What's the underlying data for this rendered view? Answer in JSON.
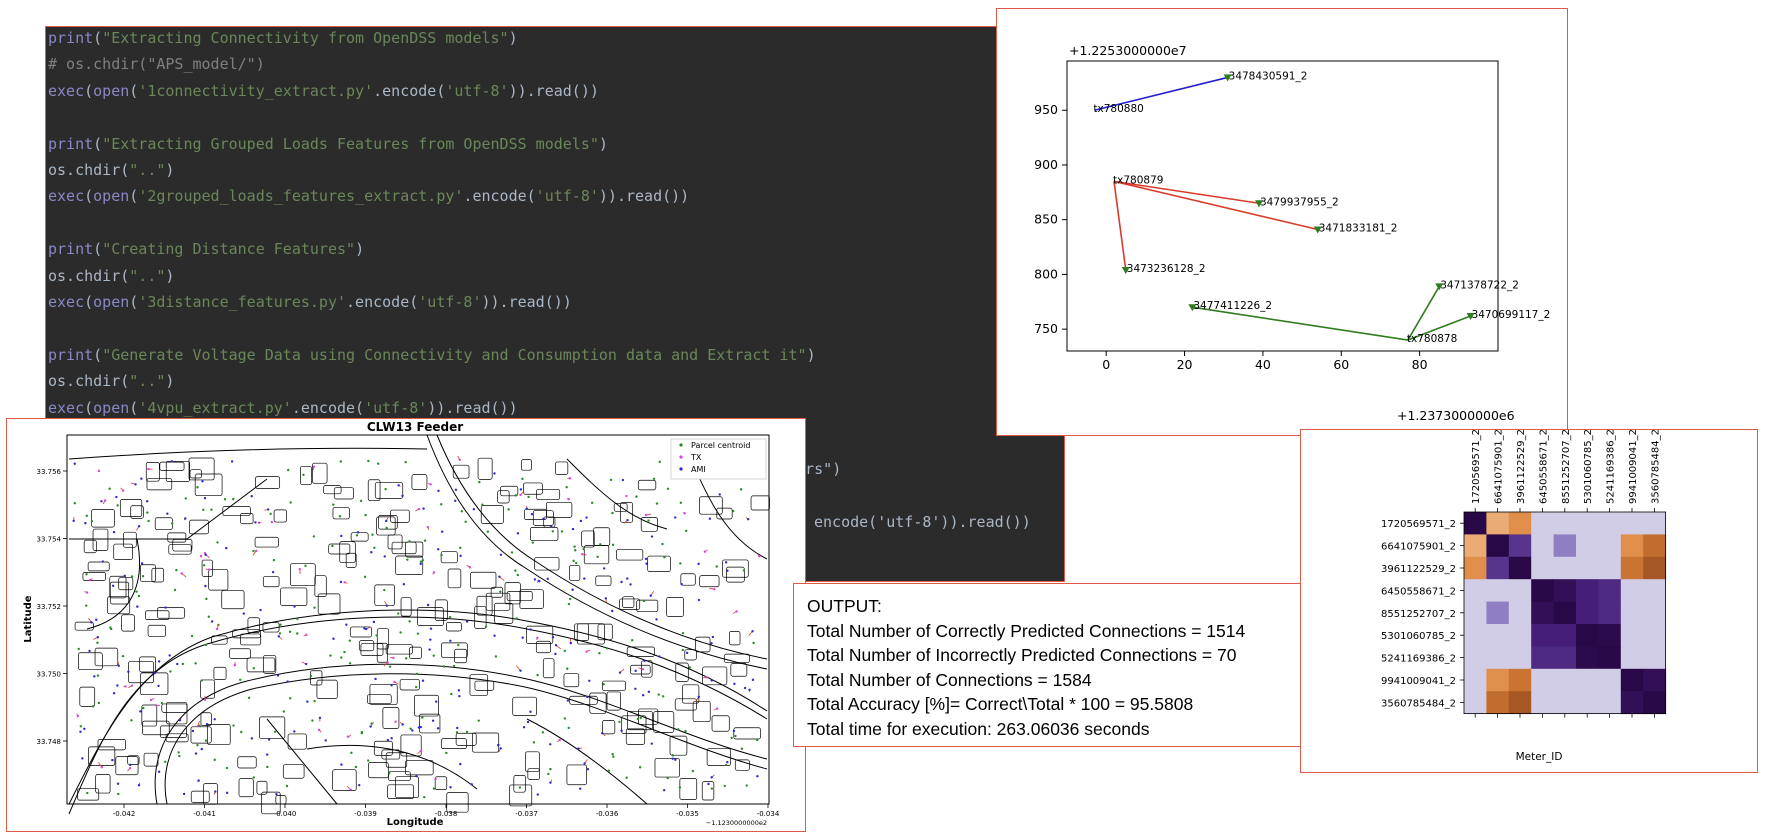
{
  "code": [
    {
      "segs": [
        [
          "kw",
          "print"
        ],
        [
          "p",
          "("
        ],
        [
          "str",
          "\"Extracting Connectivity from OpenDSS models\""
        ],
        [
          "p",
          ")"
        ]
      ]
    },
    {
      "segs": [
        [
          "cm",
          "# os.chdir(\"APS_model/\")"
        ]
      ]
    },
    {
      "segs": [
        [
          "kw",
          "exec"
        ],
        [
          "p",
          "("
        ],
        [
          "kw",
          "open"
        ],
        [
          "p",
          "("
        ],
        [
          "str",
          "'1connectivity_extract.py'"
        ],
        [
          "p",
          ".encode("
        ],
        [
          "str",
          "'utf-8'"
        ],
        [
          "p",
          ")).read())"
        ]
      ]
    },
    {
      "segs": []
    },
    {
      "segs": [
        [
          "kw",
          "print"
        ],
        [
          "p",
          "("
        ],
        [
          "str",
          "\"Extracting Grouped Loads Features from OpenDSS models\""
        ],
        [
          "p",
          ")"
        ]
      ]
    },
    {
      "segs": [
        [
          "p",
          "os.chdir("
        ],
        [
          "str",
          "\"..\""
        ],
        [
          "p",
          ")"
        ]
      ]
    },
    {
      "segs": [
        [
          "kw",
          "exec"
        ],
        [
          "p",
          "("
        ],
        [
          "kw",
          "open"
        ],
        [
          "p",
          "("
        ],
        [
          "str",
          "'2grouped_loads_features_extract.py'"
        ],
        [
          "p",
          ".encode("
        ],
        [
          "str",
          "'utf-8'"
        ],
        [
          "p",
          ")).read())"
        ]
      ]
    },
    {
      "segs": []
    },
    {
      "segs": [
        [
          "kw",
          "print"
        ],
        [
          "p",
          "("
        ],
        [
          "str",
          "\"Creating Distance Features\""
        ],
        [
          "p",
          ")"
        ]
      ]
    },
    {
      "segs": [
        [
          "p",
          "os.chdir("
        ],
        [
          "str",
          "\"..\""
        ],
        [
          "p",
          ")"
        ]
      ]
    },
    {
      "segs": [
        [
          "kw",
          "exec"
        ],
        [
          "p",
          "("
        ],
        [
          "kw",
          "open"
        ],
        [
          "p",
          "("
        ],
        [
          "str",
          "'3distance_features.py'"
        ],
        [
          "p",
          ".encode("
        ],
        [
          "str",
          "'utf-8'"
        ],
        [
          "p",
          ")).read())"
        ]
      ]
    },
    {
      "segs": []
    },
    {
      "segs": [
        [
          "kw",
          "print"
        ],
        [
          "p",
          "("
        ],
        [
          "str",
          "\"Generate Voltage Data using Connectivity and Consumption data and Extract it\""
        ],
        [
          "p",
          ")"
        ]
      ]
    },
    {
      "segs": [
        [
          "p",
          "os.chdir("
        ],
        [
          "str",
          "\"..\""
        ],
        [
          "p",
          ")"
        ]
      ]
    },
    {
      "segs": [
        [
          "kw",
          "exec"
        ],
        [
          "p",
          "("
        ],
        [
          "kw",
          "open"
        ],
        [
          "p",
          "("
        ],
        [
          "str",
          "'4vpu_extract.py'"
        ],
        [
          "p",
          ".encode("
        ],
        [
          "str",
          "'utf-8'"
        ],
        [
          "p",
          ")).read())"
        ]
      ]
    }
  ],
  "code_fragments": {
    "formers": "ormers\")",
    "encode": "encode('utf-8')).read())"
  },
  "output": {
    "heading": "OUTPUT:",
    "lines": [
      "Total Number of Correctly Predicted Connections = 1514",
      "Total Number of Incorrectly Predicted Connections = 70",
      "Total Number of Connections = 1584",
      "Total Accuracy [%]= Correct\\Total * 100 =  95.5808",
      "Total time for execution: 263.06036 seconds"
    ]
  },
  "network_plot": {
    "y_offset_label": "+1.2253000000e7",
    "x_offset_label": "+1.2373000000e6",
    "x_ticks": [
      "0",
      "20",
      "40",
      "60",
      "80"
    ],
    "y_ticks": [
      "750",
      "800",
      "850",
      "900",
      "950"
    ],
    "groups": [
      {
        "color": "#1f1fd6",
        "tx": {
          "label": "tx780880",
          "x": -3,
          "y": 950
        },
        "meters": [
          {
            "label": "3478430591_2",
            "x": 31,
            "y": 980
          }
        ]
      },
      {
        "color": "#d93b2a",
        "tx": {
          "label": "tx780879",
          "x": 2,
          "y": 885
        },
        "meters": [
          {
            "label": "3479937955_2",
            "x": 39,
            "y": 865
          },
          {
            "label": "3471833181_2",
            "x": 54,
            "y": 841
          },
          {
            "label": "3473236128_2",
            "x": 5,
            "y": 804
          }
        ]
      },
      {
        "color": "#2e7d1f",
        "tx": {
          "label": "tx780878",
          "x": 77,
          "y": 740
        },
        "meters": [
          {
            "label": "3477411226_2",
            "x": 22,
            "y": 770
          },
          {
            "label": "3471378722_2",
            "x": 85,
            "y": 789
          },
          {
            "label": "3470699117_2",
            "x": 93,
            "y": 762
          }
        ]
      }
    ]
  },
  "heatmap": {
    "meters": [
      "1720569571_2",
      "6641075901_2",
      "3961122529_2",
      "6450558671_2",
      "8551252707_2",
      "5301060785_2",
      "5241169386_2",
      "9941009041_2",
      "3560785484_2"
    ],
    "xlabel": "Meter_ID",
    "values": [
      [
        0.0,
        0.35,
        0.55,
        0.7,
        0.78,
        0.82,
        0.78,
        0.9,
        0.85
      ],
      [
        0.35,
        0.0,
        0.25,
        0.75,
        0.5,
        0.92,
        0.88,
        0.45,
        0.6
      ],
      [
        0.55,
        0.25,
        0.0,
        0.8,
        0.7,
        0.95,
        0.95,
        0.55,
        0.45
      ],
      [
        0.7,
        0.75,
        0.8,
        0.0,
        0.05,
        0.15,
        0.2,
        0.8,
        0.85
      ],
      [
        0.78,
        0.5,
        0.7,
        0.05,
        0.0,
        0.15,
        0.2,
        0.85,
        0.9
      ],
      [
        0.82,
        0.92,
        0.95,
        0.15,
        0.15,
        0.0,
        0.02,
        0.82,
        0.85
      ],
      [
        0.78,
        0.88,
        0.95,
        0.2,
        0.2,
        0.02,
        0.0,
        0.8,
        0.82
      ],
      [
        0.9,
        0.45,
        0.55,
        0.8,
        0.85,
        0.82,
        0.8,
        0.0,
        0.05
      ],
      [
        0.85,
        0.6,
        0.45,
        0.85,
        0.9,
        0.85,
        0.82,
        0.05,
        0.0
      ]
    ]
  },
  "feeder_map": {
    "title": "CLW13 Feeder",
    "xlabel": "Longitude",
    "ylabel": "Latitude",
    "x_ticks": [
      "-0.042",
      "-0.041",
      "-0.040",
      "-0.039",
      "-0.038",
      "-0.037",
      "-0.036",
      "-0.035",
      "-0.034"
    ],
    "y_ticks": [
      "33.756",
      "33.754",
      "33.752",
      "33.750",
      "33.748"
    ],
    "x_offset": "−1.1230000000e2",
    "legend": [
      {
        "label": "Parcel centroid",
        "color": "#2a8a2a"
      },
      {
        "label": "TX",
        "color": "#e040e0"
      },
      {
        "label": "AMI",
        "color": "#2a2ad0"
      }
    ]
  }
}
